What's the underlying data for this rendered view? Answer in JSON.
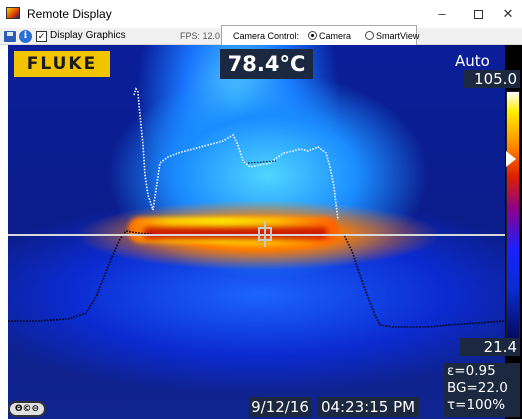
{
  "window": {
    "title": "Remote Display",
    "minimize": "–",
    "close": "✕"
  },
  "toolbar": {
    "display_graphics_label": "Display Graphics",
    "display_graphics_checked": true,
    "fps": "FPS: 12.0",
    "camera_control_label": "Camera Control:",
    "option_camera": "Camera",
    "option_smartview": "SmartView",
    "selected": "Camera"
  },
  "display": {
    "logo": "FLUKE",
    "center_temp": "78.4°C",
    "range_mode": "Auto",
    "scale_max": "105.0",
    "scale_min": "21.4",
    "emissivity": "ε=0.95",
    "background": "BG=22.0",
    "transmission": "τ=100%",
    "date": "9/12/16",
    "time": "04:23:15 PM",
    "license_icon": "creative-commons-icon"
  },
  "colors": {
    "readout_bg": "#1b2840",
    "logo_yellow": "#f2c400"
  }
}
